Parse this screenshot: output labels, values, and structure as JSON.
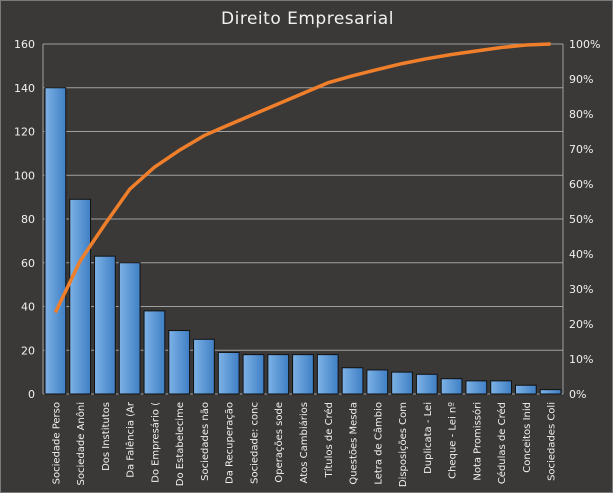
{
  "chart_data": {
    "type": "bar",
    "title": "Direito  Empresarial",
    "categories": [
      "Sociedade Perso",
      "Sociedade Anôni",
      "Dos Institutos",
      "Da Falência (Ar",
      "Do Empresário (",
      "Do Estabelecime",
      "Sociedades não",
      "Da Recuperação",
      "Sociedade: conc",
      "Operações sode",
      "Atos Cambiários",
      "Títulos de Créd",
      "Questões Mesda",
      "Letra de Câmbio",
      "Disposições Com",
      "Duplicata - Lei",
      "Cheque - Lei nº",
      "Nota Promissóri",
      "Cédulas de Créd",
      "Conceitos Inid",
      "Sociedades Coli"
    ],
    "series": [
      {
        "type": "bar",
        "values": [
          140,
          89,
          63,
          60,
          38,
          29,
          25,
          19,
          18,
          18,
          18,
          18,
          12,
          11,
          10,
          9,
          7,
          6,
          6,
          4,
          2
        ],
        "color": "#5b9bd5"
      },
      {
        "type": "line",
        "axis": "right",
        "values": [
          23.3,
          38.0,
          48.5,
          58.5,
          64.8,
          69.6,
          73.8,
          76.9,
          79.9,
          82.9,
          85.9,
          88.9,
          90.9,
          92.7,
          94.4,
          95.8,
          97.0,
          98.0,
          99.0,
          99.7,
          100
        ],
        "color": "#f07f2b"
      }
    ],
    "ylim": [
      0,
      160
    ],
    "yticks": [
      "0",
      "20",
      "40",
      "60",
      "80",
      "100",
      "120",
      "140",
      "160"
    ],
    "y2lim": [
      0,
      100
    ],
    "y2ticks": [
      "0%",
      "10%",
      "20%",
      "30%",
      "40%",
      "50%",
      "60%",
      "70%",
      "80%",
      "90%",
      "100%"
    ],
    "grid": true,
    "legend": "none"
  }
}
